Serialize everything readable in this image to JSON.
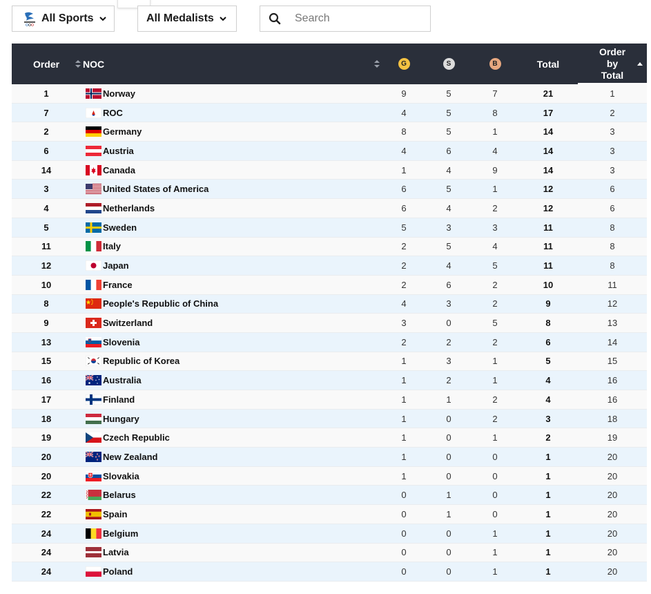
{
  "filters": {
    "sports_label": "All Sports",
    "medalists_label": "All Medalists",
    "search_placeholder": "Search"
  },
  "header": {
    "order": "Order",
    "noc": "NOC",
    "gold": "G",
    "silver": "S",
    "bronze": "B",
    "total": "Total",
    "order_by_total": [
      "Order",
      "by",
      "Total"
    ]
  },
  "colors": {
    "header_bg": "#2a2f3a",
    "gold": "#f5c242",
    "silver": "#dcdcdc",
    "bronze": "#e6a77f",
    "row_alt": "#eaf4fc"
  },
  "rows": [
    {
      "order": "1",
      "noc": "Norway",
      "flag": "norway",
      "g": "9",
      "s": "5",
      "b": "7",
      "total": "21",
      "obt": "1"
    },
    {
      "order": "7",
      "noc": "ROC",
      "flag": "roc",
      "g": "4",
      "s": "5",
      "b": "8",
      "total": "17",
      "obt": "2"
    },
    {
      "order": "2",
      "noc": "Germany",
      "flag": "germany",
      "g": "8",
      "s": "5",
      "b": "1",
      "total": "14",
      "obt": "3"
    },
    {
      "order": "6",
      "noc": "Austria",
      "flag": "austria",
      "g": "4",
      "s": "6",
      "b": "4",
      "total": "14",
      "obt": "3"
    },
    {
      "order": "14",
      "noc": "Canada",
      "flag": "canada",
      "g": "1",
      "s": "4",
      "b": "9",
      "total": "14",
      "obt": "3"
    },
    {
      "order": "3",
      "noc": "United States of America",
      "flag": "usa",
      "g": "6",
      "s": "5",
      "b": "1",
      "total": "12",
      "obt": "6"
    },
    {
      "order": "4",
      "noc": "Netherlands",
      "flag": "netherlands",
      "g": "6",
      "s": "4",
      "b": "2",
      "total": "12",
      "obt": "6"
    },
    {
      "order": "5",
      "noc": "Sweden",
      "flag": "sweden",
      "g": "5",
      "s": "3",
      "b": "3",
      "total": "11",
      "obt": "8"
    },
    {
      "order": "11",
      "noc": "Italy",
      "flag": "italy",
      "g": "2",
      "s": "5",
      "b": "4",
      "total": "11",
      "obt": "8"
    },
    {
      "order": "12",
      "noc": "Japan",
      "flag": "japan",
      "g": "2",
      "s": "4",
      "b": "5",
      "total": "11",
      "obt": "8"
    },
    {
      "order": "10",
      "noc": "France",
      "flag": "france",
      "g": "2",
      "s": "6",
      "b": "2",
      "total": "10",
      "obt": "11"
    },
    {
      "order": "8",
      "noc": "People's Republic of China",
      "flag": "china",
      "g": "4",
      "s": "3",
      "b": "2",
      "total": "9",
      "obt": "12"
    },
    {
      "order": "9",
      "noc": "Switzerland",
      "flag": "switzerland",
      "g": "3",
      "s": "0",
      "b": "5",
      "total": "8",
      "obt": "13"
    },
    {
      "order": "13",
      "noc": "Slovenia",
      "flag": "slovenia",
      "g": "2",
      "s": "2",
      "b": "2",
      "total": "6",
      "obt": "14"
    },
    {
      "order": "15",
      "noc": "Republic of Korea",
      "flag": "korea",
      "g": "1",
      "s": "3",
      "b": "1",
      "total": "5",
      "obt": "15"
    },
    {
      "order": "16",
      "noc": "Australia",
      "flag": "australia",
      "g": "1",
      "s": "2",
      "b": "1",
      "total": "4",
      "obt": "16"
    },
    {
      "order": "17",
      "noc": "Finland",
      "flag": "finland",
      "g": "1",
      "s": "1",
      "b": "2",
      "total": "4",
      "obt": "16"
    },
    {
      "order": "18",
      "noc": "Hungary",
      "flag": "hungary",
      "g": "1",
      "s": "0",
      "b": "2",
      "total": "3",
      "obt": "18"
    },
    {
      "order": "19",
      "noc": "Czech Republic",
      "flag": "czech",
      "g": "1",
      "s": "0",
      "b": "1",
      "total": "2",
      "obt": "19"
    },
    {
      "order": "20",
      "noc": "New Zealand",
      "flag": "newzealand",
      "g": "1",
      "s": "0",
      "b": "0",
      "total": "1",
      "obt": "20"
    },
    {
      "order": "20",
      "noc": "Slovakia",
      "flag": "slovakia",
      "g": "1",
      "s": "0",
      "b": "0",
      "total": "1",
      "obt": "20"
    },
    {
      "order": "22",
      "noc": "Belarus",
      "flag": "belarus",
      "g": "0",
      "s": "1",
      "b": "0",
      "total": "1",
      "obt": "20"
    },
    {
      "order": "22",
      "noc": "Spain",
      "flag": "spain",
      "g": "0",
      "s": "1",
      "b": "0",
      "total": "1",
      "obt": "20"
    },
    {
      "order": "24",
      "noc": "Belgium",
      "flag": "belgium",
      "g": "0",
      "s": "0",
      "b": "1",
      "total": "1",
      "obt": "20"
    },
    {
      "order": "24",
      "noc": "Latvia",
      "flag": "latvia",
      "g": "0",
      "s": "0",
      "b": "1",
      "total": "1",
      "obt": "20"
    },
    {
      "order": "24",
      "noc": "Poland",
      "flag": "poland",
      "g": "0",
      "s": "0",
      "b": "1",
      "total": "1",
      "obt": "20"
    }
  ]
}
